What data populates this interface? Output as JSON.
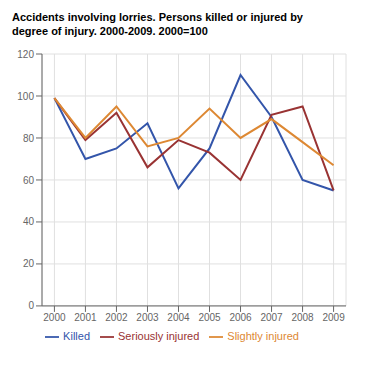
{
  "chart_data": {
    "type": "line",
    "title": "Accidents involving lorries. Persons killed or injured by",
    "subtitle": "degree of injury. 2000-2009. 2000=100",
    "x": [
      2000,
      2001,
      2002,
      2003,
      2004,
      2005,
      2006,
      2007,
      2008,
      2009
    ],
    "series": [
      {
        "name": "Killed",
        "color": "#3355aa",
        "values": [
          99,
          70,
          75,
          87,
          56,
          75,
          110,
          90,
          60,
          55
        ]
      },
      {
        "name": "Seriously injured",
        "color": "#993333",
        "values": [
          99,
          79,
          92,
          66,
          79,
          73,
          60,
          91,
          95,
          55
        ]
      },
      {
        "name": "Slightly injured",
        "color": "#dd8833",
        "values": [
          99,
          80,
          95,
          76,
          80,
          94,
          80,
          89,
          78,
          67
        ]
      }
    ],
    "xlim": [
      1999.6,
      2009.4
    ],
    "xticks": [
      2000,
      2001,
      2002,
      2003,
      2004,
      2005,
      2006,
      2007,
      2008,
      2009
    ],
    "ylim": [
      0,
      120
    ],
    "yticks": [
      0,
      20,
      40,
      60,
      80,
      100,
      120
    ],
    "grid": true,
    "legend": "bottom"
  }
}
